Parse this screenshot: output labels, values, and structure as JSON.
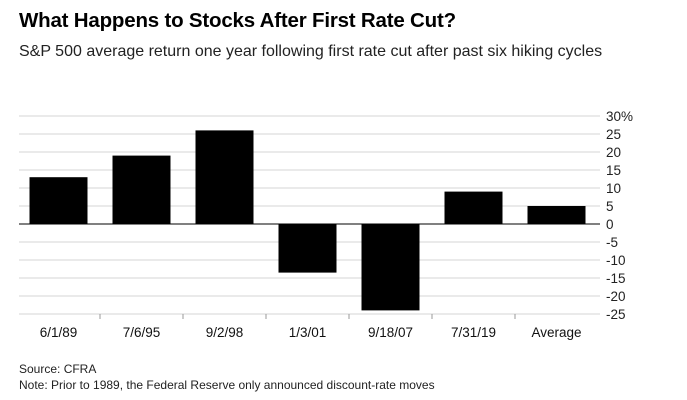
{
  "header": {
    "title": "What Happens to Stocks After First Rate Cut?",
    "subtitle": "S&P 500 average return one year following first rate cut after past six hiking cycles"
  },
  "footer": {
    "source": "Source: CFRA",
    "note": "Note:  Prior to 1989, the Federal Reserve only announced discount-rate moves"
  },
  "chart_data": {
    "type": "bar",
    "title": "What Happens to Stocks After First Rate Cut?",
    "subtitle": "S&P 500 average return one year following first rate cut after past six hiking cycles",
    "xlabel": "",
    "ylabel": "",
    "categories": [
      "6/1/89",
      "7/6/95",
      "9/2/98",
      "1/3/01",
      "9/18/07",
      "7/31/19",
      "Average"
    ],
    "values": [
      13,
      19,
      26,
      -13.5,
      -24,
      9,
      5
    ],
    "ylim": [
      -25,
      30
    ],
    "yticks": [
      30,
      25,
      20,
      15,
      10,
      5,
      0,
      -5,
      -10,
      -15,
      -20,
      -25
    ],
    "ytick_labels": [
      "30%",
      "25",
      "20",
      "15",
      "10",
      "5",
      "0",
      "-5",
      "-10",
      "-15",
      "-20",
      "-25"
    ],
    "y_axis_position": "right",
    "grid": true,
    "bar_color": "#000000"
  }
}
